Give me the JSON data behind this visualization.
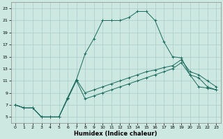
{
  "xlabel": "Humidex (Indice chaleur)",
  "bg_color": "#cce8e0",
  "grid_color": "#aacccc",
  "line_color": "#1a6b5e",
  "line1_y": [
    7,
    6.5,
    6.5,
    5,
    5,
    5,
    8,
    11,
    8,
    8.5,
    9,
    9.5,
    10,
    10.5,
    11,
    11.5,
    12,
    12.5,
    13,
    14,
    12,
    10,
    9.8,
    9.5
  ],
  "line2_y": [
    7,
    6.5,
    6.5,
    5,
    5,
    5,
    8.2,
    11.2,
    9,
    9.5,
    10,
    10.5,
    11,
    11.5,
    12,
    12.5,
    12.8,
    13.2,
    13.5,
    14.5,
    12.5,
    12,
    11,
    10
  ],
  "line3_y": [
    7,
    6.5,
    6.5,
    5,
    5,
    5,
    8.2,
    11.2,
    15.5,
    18,
    21,
    21,
    21,
    21.5,
    22.5,
    22.5,
    21,
    17.5,
    15,
    14.8,
    12,
    11.5,
    10,
    9.5
  ],
  "xlim": [
    -0.5,
    23.5
  ],
  "ylim": [
    4,
    24
  ],
  "yticks": [
    5,
    7,
    9,
    11,
    13,
    15,
    17,
    19,
    21,
    23
  ],
  "xticks": [
    0,
    1,
    2,
    3,
    4,
    5,
    6,
    7,
    8,
    9,
    10,
    11,
    12,
    13,
    14,
    15,
    16,
    17,
    18,
    19,
    20,
    21,
    22,
    23
  ],
  "title_fontsize": 7,
  "xlabel_fontsize": 6,
  "tick_fontsize": 4.5
}
